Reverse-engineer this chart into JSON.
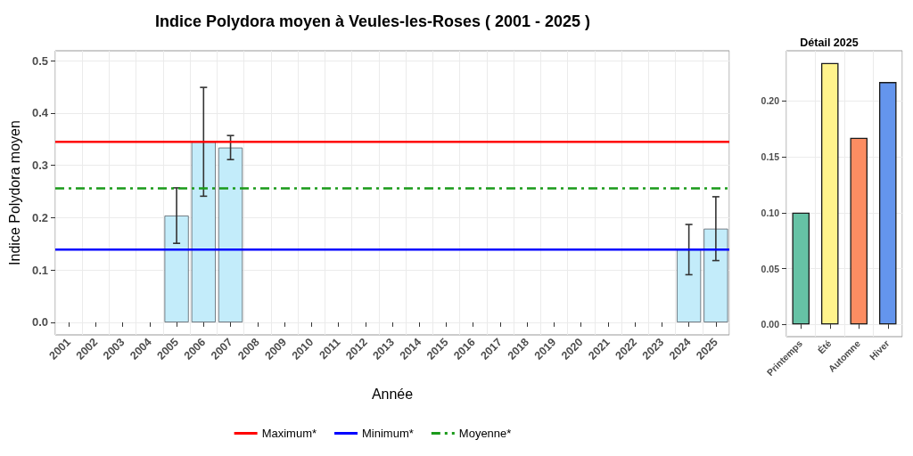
{
  "chart_data": [
    {
      "type": "bar",
      "title": "Indice Polydora moyen à Veules-les-Roses ( 2001 - 2025 )",
      "xlabel": "Année",
      "ylabel": "Indice Polydora moyen",
      "categories": [
        "2001",
        "2002",
        "2003",
        "2004",
        "2005",
        "2006",
        "2007",
        "2008",
        "2009",
        "2010",
        "2011",
        "2012",
        "2013",
        "2014",
        "2015",
        "2016",
        "2017",
        "2018",
        "2019",
        "2020",
        "2021",
        "2022",
        "2023",
        "2024",
        "2025"
      ],
      "values": [
        null,
        null,
        null,
        null,
        0.204,
        0.345,
        0.334,
        null,
        null,
        null,
        null,
        null,
        null,
        null,
        null,
        null,
        null,
        null,
        null,
        null,
        null,
        null,
        null,
        0.139,
        0.179
      ],
      "errors": [
        null,
        null,
        null,
        null,
        0.053,
        0.104,
        0.023,
        null,
        null,
        null,
        null,
        null,
        null,
        null,
        null,
        null,
        null,
        null,
        null,
        null,
        null,
        null,
        null,
        0.048,
        0.061
      ],
      "color": "#c3ecfa",
      "ylim": [
        -0.024,
        0.519
      ],
      "yticks": [
        {
          "value": 0,
          "label": "0.0"
        },
        {
          "value": 0.1,
          "label": "0.1"
        },
        {
          "value": 0.2,
          "label": "0.2"
        },
        {
          "value": 0.3,
          "label": "0.3"
        },
        {
          "value": 0.4,
          "label": "0.4"
        },
        {
          "value": 0.5,
          "label": "0.5"
        }
      ],
      "ref_lines": [
        {
          "axis": "y",
          "value": 0.345,
          "label": "Maximum*",
          "color": "#ff0000",
          "line_style": "solid"
        },
        {
          "axis": "y",
          "value": 0.139,
          "label": "Minimum*",
          "color": "#0000ff",
          "line_style": "solid"
        },
        {
          "axis": "y",
          "value": 0.256,
          "label": "Moyenne*",
          "color": "#1a9a1a",
          "line_style": "dashdot"
        }
      ],
      "grid": true,
      "legend": "bottom"
    },
    {
      "type": "bar",
      "title": "Détail 2025",
      "categories": [
        "Printemps",
        "Été",
        "Automne",
        "Hiver"
      ],
      "values": [
        0.1,
        0.234,
        0.167,
        0.217
      ],
      "colors": [
        "#66c2a5",
        "#fff38c",
        "#fc8d62",
        "#6495ed"
      ],
      "ylim": [
        -0.011,
        0.245
      ],
      "yticks": [
        {
          "value": 0,
          "label": "0.00"
        },
        {
          "value": 0.05,
          "label": "0.05"
        },
        {
          "value": 0.1,
          "label": "0.10"
        },
        {
          "value": 0.15,
          "label": "0.15"
        },
        {
          "value": 0.2,
          "label": "0.20"
        }
      ],
      "grid": true
    }
  ]
}
